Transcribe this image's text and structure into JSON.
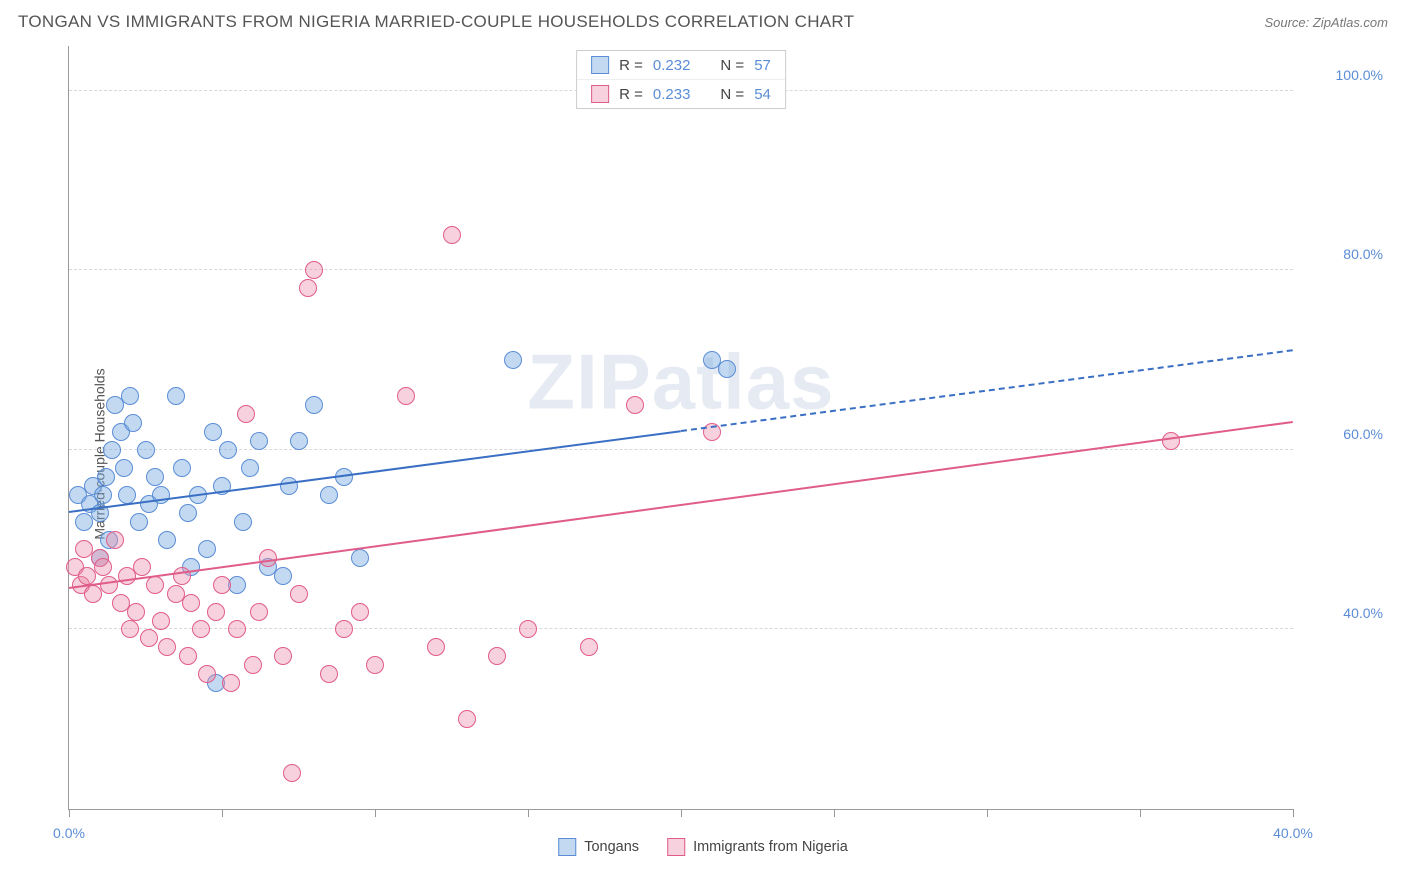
{
  "header": {
    "title": "TONGAN VS IMMIGRANTS FROM NIGERIA MARRIED-COUPLE HOUSEHOLDS CORRELATION CHART",
    "source_label": "Source: ",
    "source_name": "ZipAtlas.com"
  },
  "ylabel": "Married-couple Households",
  "watermark": "ZIPatlas",
  "chart": {
    "type": "scatter",
    "xlim": [
      0,
      40
    ],
    "ylim": [
      20,
      105
    ],
    "background_color": "#ffffff",
    "grid_color": "#d8d8d8",
    "yticks": [
      {
        "v": 40,
        "label": "40.0%"
      },
      {
        "v": 60,
        "label": "60.0%"
      },
      {
        "v": 80,
        "label": "80.0%"
      },
      {
        "v": 100,
        "label": "100.0%"
      }
    ],
    "xticks": [
      {
        "v": 0,
        "label": "0.0%"
      },
      {
        "v": 5,
        "label": ""
      },
      {
        "v": 10,
        "label": ""
      },
      {
        "v": 15,
        "label": ""
      },
      {
        "v": 20,
        "label": ""
      },
      {
        "v": 25,
        "label": ""
      },
      {
        "v": 30,
        "label": ""
      },
      {
        "v": 35,
        "label": ""
      },
      {
        "v": 40,
        "label": "40.0%"
      }
    ],
    "series": [
      {
        "name": "Tongans",
        "color_fill": "rgba(120,170,225,0.45)",
        "color_stroke": "#5b8dd6",
        "marker_radius": 9,
        "trend": {
          "x1": 0,
          "y1": 53,
          "x2": 20,
          "y2": 62,
          "x2_dash": 40,
          "y2_dash": 71,
          "color": "#3a6fc4",
          "width": 2
        },
        "points": [
          [
            0.3,
            55
          ],
          [
            0.5,
            52
          ],
          [
            0.7,
            54
          ],
          [
            0.8,
            56
          ],
          [
            1.0,
            53
          ],
          [
            1.0,
            48
          ],
          [
            1.1,
            55
          ],
          [
            1.2,
            57
          ],
          [
            1.3,
            50
          ],
          [
            1.4,
            60
          ],
          [
            1.5,
            65
          ],
          [
            1.7,
            62
          ],
          [
            1.8,
            58
          ],
          [
            1.9,
            55
          ],
          [
            2.0,
            66
          ],
          [
            2.1,
            63
          ],
          [
            2.3,
            52
          ],
          [
            2.5,
            60
          ],
          [
            2.6,
            54
          ],
          [
            2.8,
            57
          ],
          [
            3.0,
            55
          ],
          [
            3.2,
            50
          ],
          [
            3.5,
            66
          ],
          [
            3.7,
            58
          ],
          [
            3.9,
            53
          ],
          [
            4.0,
            47
          ],
          [
            4.2,
            55
          ],
          [
            4.5,
            49
          ],
          [
            4.7,
            62
          ],
          [
            5.0,
            56
          ],
          [
            5.2,
            60
          ],
          [
            5.5,
            45
          ],
          [
            5.7,
            52
          ],
          [
            5.9,
            58
          ],
          [
            6.2,
            61
          ],
          [
            6.5,
            47
          ],
          [
            7.0,
            46
          ],
          [
            7.2,
            56
          ],
          [
            7.5,
            61
          ],
          [
            8.0,
            65
          ],
          [
            8.5,
            55
          ],
          [
            9.0,
            57
          ],
          [
            9.5,
            48
          ],
          [
            4.8,
            34
          ],
          [
            14.5,
            70
          ],
          [
            21.0,
            70
          ],
          [
            21.5,
            69
          ]
        ]
      },
      {
        "name": "Immigrants from Nigeria",
        "color_fill": "rgba(235,140,170,0.40)",
        "color_stroke": "#e05c8a",
        "marker_radius": 9,
        "trend": {
          "x1": 0,
          "y1": 44.5,
          "x2": 40,
          "y2": 63,
          "color": "#e05c8a",
          "width": 2
        },
        "points": [
          [
            0.2,
            47
          ],
          [
            0.4,
            45
          ],
          [
            0.5,
            49
          ],
          [
            0.6,
            46
          ],
          [
            0.8,
            44
          ],
          [
            1.0,
            48
          ],
          [
            1.1,
            47
          ],
          [
            1.3,
            45
          ],
          [
            1.5,
            50
          ],
          [
            1.7,
            43
          ],
          [
            1.9,
            46
          ],
          [
            2.0,
            40
          ],
          [
            2.2,
            42
          ],
          [
            2.4,
            47
          ],
          [
            2.6,
            39
          ],
          [
            2.8,
            45
          ],
          [
            3.0,
            41
          ],
          [
            3.2,
            38
          ],
          [
            3.5,
            44
          ],
          [
            3.7,
            46
          ],
          [
            3.9,
            37
          ],
          [
            4.0,
            43
          ],
          [
            4.3,
            40
          ],
          [
            4.5,
            35
          ],
          [
            4.8,
            42
          ],
          [
            5.0,
            45
          ],
          [
            5.3,
            34
          ],
          [
            5.5,
            40
          ],
          [
            5.8,
            64
          ],
          [
            6.0,
            36
          ],
          [
            6.2,
            42
          ],
          [
            6.5,
            48
          ],
          [
            7.0,
            37
          ],
          [
            7.3,
            24
          ],
          [
            7.5,
            44
          ],
          [
            7.8,
            78
          ],
          [
            8.0,
            80
          ],
          [
            8.5,
            35
          ],
          [
            9.0,
            40
          ],
          [
            9.5,
            42
          ],
          [
            10.0,
            36
          ],
          [
            11.0,
            66
          ],
          [
            12.0,
            38
          ],
          [
            12.5,
            84
          ],
          [
            13.0,
            30
          ],
          [
            14.0,
            37
          ],
          [
            15.0,
            40
          ],
          [
            17.0,
            38
          ],
          [
            18.5,
            65
          ],
          [
            21.0,
            62
          ],
          [
            36.0,
            61
          ]
        ]
      }
    ]
  },
  "legend_top": [
    {
      "swatch_fill": "rgba(120,170,225,0.45)",
      "swatch_stroke": "#5b8dd6",
      "r_label": "R =",
      "r_value": "0.232",
      "n_label": "N =",
      "n_value": "57"
    },
    {
      "swatch_fill": "rgba(235,140,170,0.40)",
      "swatch_stroke": "#e05c8a",
      "r_label": "R =",
      "r_value": "0.233",
      "n_label": "N =",
      "n_value": "54"
    }
  ],
  "legend_bottom": [
    {
      "swatch_fill": "rgba(120,170,225,0.45)",
      "swatch_stroke": "#5b8dd6",
      "label": "Tongans"
    },
    {
      "swatch_fill": "rgba(235,140,170,0.40)",
      "swatch_stroke": "#e05c8a",
      "label": "Immigrants from Nigeria"
    }
  ]
}
